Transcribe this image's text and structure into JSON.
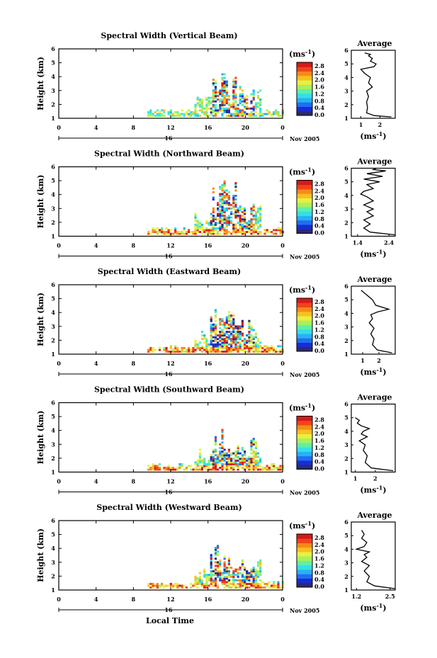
{
  "figure": {
    "date_label": "Nov 2005",
    "day_label": "16",
    "unit_label": "(ms",
    "unit_exp": "-1",
    "unit_close": ")",
    "ylabel": "Height (km)",
    "xlabel_bottom": "Local Time",
    "avg_title": "Average",
    "x_ticks": [
      "0",
      "4",
      "8",
      "12",
      "16",
      "20",
      "0"
    ],
    "y_ticks": [
      "1",
      "2",
      "3",
      "4",
      "5",
      "6"
    ],
    "colorbar_ticks": [
      "2.8",
      "2.4",
      "2.0",
      "1.6",
      "1.2",
      "0.8",
      "0.4",
      "0.0"
    ],
    "colors": {
      "colormap": [
        "#2b2b6e",
        "#1a2bd6",
        "#1f6ff0",
        "#2ab0f5",
        "#34e0e6",
        "#5ef0a8",
        "#a8f060",
        "#e8f040",
        "#f8c020",
        "#f88a18",
        "#f0441a",
        "#d41a1a"
      ]
    }
  },
  "chart_data": [
    {
      "type": "heatmap",
      "title": "Spectral Width (Vertical Beam)",
      "xlabel": "",
      "ylabel": "Height (km)",
      "xlim": [
        0,
        24
      ],
      "ylim": [
        1,
        6
      ],
      "clim": [
        0.0,
        2.8
      ],
      "profile": {
        "title": "Average",
        "xlabel": "(ms-1)",
        "x_ticks": [
          "1",
          "2"
        ],
        "xlim": [
          0.5,
          2.8
        ],
        "ylim": [
          1,
          6
        ],
        "x": [
          2.6,
          1.7,
          1.3,
          1.35,
          1.3,
          1.4,
          1.3,
          1.6,
          1.4,
          1.5,
          1.2,
          1.0,
          1.7,
          1.8,
          1.5,
          1.6,
          1.4,
          1.5,
          1.2
        ],
        "y": [
          1.1,
          1.2,
          1.4,
          1.8,
          2.2,
          2.6,
          3.0,
          3.3,
          3.6,
          4.0,
          4.3,
          4.6,
          4.8,
          5.0,
          5.2,
          5.4,
          5.6,
          5.7,
          5.8
        ]
      }
    },
    {
      "type": "heatmap",
      "title": "Spectral Width (Northward Beam)",
      "xlabel": "",
      "ylabel": "Height (km)",
      "xlim": [
        0,
        24
      ],
      "ylim": [
        1,
        6
      ],
      "clim": [
        0.0,
        2.8
      ],
      "profile": {
        "title": "Average",
        "xlabel": "(ms-1)",
        "x_ticks": [
          "1.4",
          "2.4"
        ],
        "xlim": [
          1.2,
          2.6
        ],
        "ylim": [
          1,
          6
        ],
        "x": [
          2.6,
          1.8,
          1.6,
          1.8,
          1.6,
          1.9,
          1.7,
          1.9,
          1.6,
          1.9,
          1.7,
          1.5,
          1.6,
          1.9,
          1.7,
          2.1,
          1.6,
          2.2,
          1.7,
          2.3,
          1.9,
          2.0
        ],
        "y": [
          1.1,
          1.3,
          1.6,
          1.9,
          2.2,
          2.5,
          2.8,
          3.0,
          3.3,
          3.6,
          3.9,
          4.1,
          4.3,
          4.5,
          4.8,
          5.0,
          5.2,
          5.4,
          5.6,
          5.8,
          5.9,
          6.0
        ]
      }
    },
    {
      "type": "heatmap",
      "title": "Spectral Width (Eastward Beam)",
      "xlabel": "",
      "ylabel": "Height (km)",
      "xlim": [
        0,
        24
      ],
      "ylim": [
        1,
        6
      ],
      "clim": [
        0.0,
        2.8
      ],
      "profile": {
        "title": "Average",
        "xlabel": "(ms-1)",
        "x_ticks": [
          "1",
          "2"
        ],
        "xlim": [
          0.3,
          3.0
        ],
        "ylim": [
          1,
          6
        ],
        "x": [
          2.8,
          1.9,
          1.6,
          1.7,
          1.5,
          1.7,
          1.4,
          1.6,
          1.5,
          1.9,
          2.6,
          1.8,
          1.6,
          1.2,
          0.9
        ],
        "y": [
          1.1,
          1.3,
          1.7,
          2.1,
          2.5,
          2.9,
          3.3,
          3.6,
          3.9,
          4.1,
          4.3,
          4.6,
          5.0,
          5.4,
          5.7
        ]
      }
    },
    {
      "type": "heatmap",
      "title": "Spectral Width (Southward Beam)",
      "xlabel": "",
      "ylabel": "Height (km)",
      "xlim": [
        0,
        24
      ],
      "ylim": [
        1,
        6
      ],
      "clim": [
        0.0,
        2.8
      ],
      "profile": {
        "title": "Average",
        "xlabel": "(ms-1)",
        "x_ticks": [
          "1",
          "2"
        ],
        "xlim": [
          0.8,
          3.0
        ],
        "ylim": [
          1,
          6
        ],
        "x": [
          2.9,
          1.8,
          1.5,
          1.6,
          1.4,
          1.5,
          1.2,
          1.6,
          1.3,
          1.4,
          1.7,
          1.3,
          1.1,
          1.2,
          1.0
        ],
        "y": [
          1.1,
          1.3,
          1.7,
          2.2,
          2.6,
          3.0,
          3.3,
          3.6,
          3.8,
          4.0,
          4.2,
          4.4,
          4.6,
          4.8,
          5.0
        ]
      }
    },
    {
      "type": "heatmap",
      "title": "Spectral Width (Westward Beam)",
      "xlabel": "",
      "ylabel": "Height (km)",
      "xlim": [
        0,
        24
      ],
      "ylim": [
        1,
        6
      ],
      "clim": [
        0.0,
        2.8
      ],
      "profile": {
        "title": "Average",
        "xlabel": "(ms-1)",
        "x_ticks": [
          "1.2",
          "2.5"
        ],
        "xlim": [
          1.0,
          2.7
        ],
        "ylim": [
          1,
          6
        ],
        "x": [
          2.7,
          1.9,
          1.6,
          1.7,
          1.5,
          1.7,
          1.4,
          1.6,
          1.5,
          1.7,
          1.2,
          1.5,
          1.6,
          1.4,
          1.5,
          1.4
        ],
        "y": [
          1.1,
          1.3,
          1.6,
          2.0,
          2.4,
          2.8,
          3.1,
          3.4,
          3.6,
          3.8,
          4.0,
          4.2,
          4.5,
          4.8,
          5.1,
          5.4
        ]
      }
    }
  ]
}
